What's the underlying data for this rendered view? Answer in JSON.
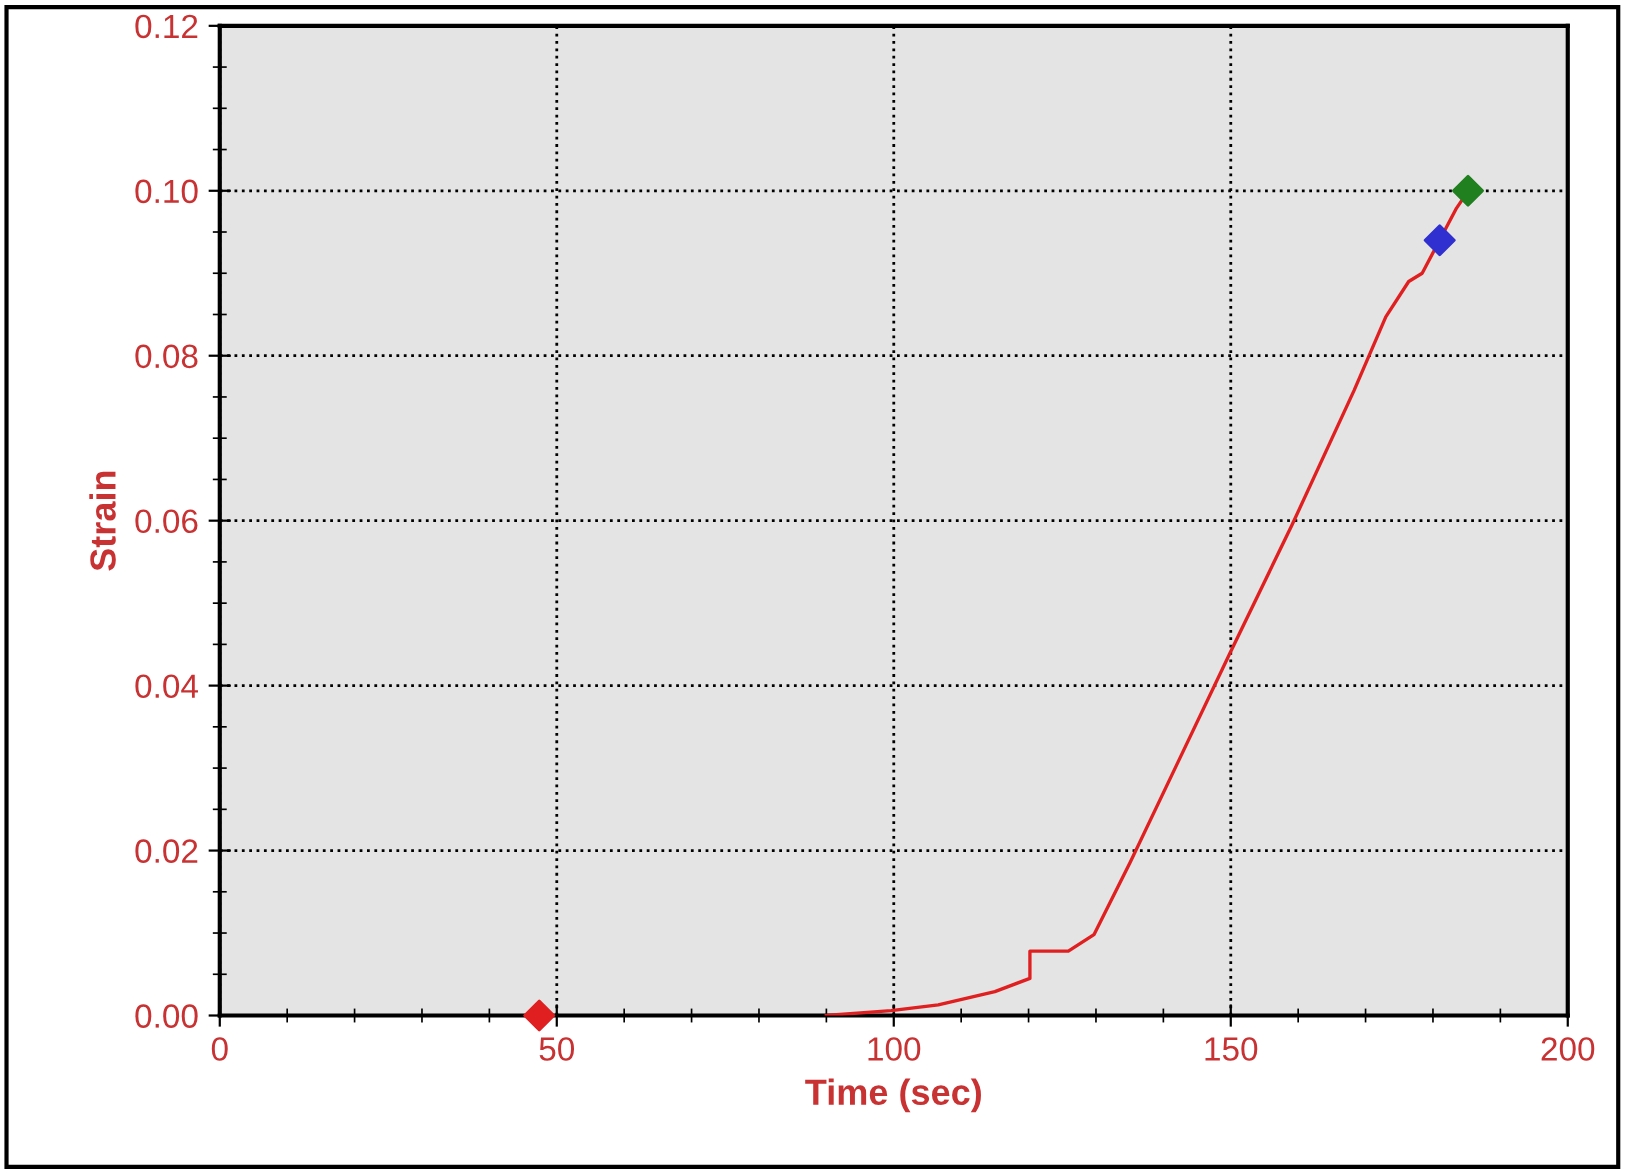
{
  "chart_data": {
    "type": "line",
    "xlabel": "Time (sec)",
    "ylabel": "Strain",
    "xlim": [
      0,
      200
    ],
    "xticks": [
      0,
      50,
      100,
      150,
      200
    ],
    "ylim": [
      0,
      0.12
    ],
    "yticks": [
      {
        "value": 0,
        "label": "0.00"
      },
      {
        "value": 0.02,
        "label": "0.02"
      },
      {
        "value": 0.04,
        "label": "0.04"
      },
      {
        "value": 0.06,
        "label": "0.06"
      },
      {
        "value": 0.08,
        "label": "0.08"
      },
      {
        "value": 0.1,
        "label": "0.10"
      },
      {
        "value": 0.12,
        "label": "0.12"
      }
    ],
    "grid": true,
    "series": [
      {
        "color": "#e02020",
        "marker": "none",
        "line_style": "solid",
        "x": [
          90,
          99.6,
          106.6,
          115,
          120.2,
          120.2,
          125.9,
          129.7,
          135.1,
          142.1,
          149.8,
          159.1,
          168.3,
          173,
          176.4,
          178.4,
          183.5,
          185
        ],
        "values": [
          0,
          0.0006,
          0.0013,
          0.0029,
          0.0045,
          0.0078,
          0.0078,
          0.0098,
          0.0186,
          0.0306,
          0.0438,
          0.0595,
          0.0758,
          0.0847,
          0.089,
          0.09,
          0.0979,
          0.0997
        ]
      },
      {
        "type": "scatter",
        "color": "#e02020",
        "marker": "diamond",
        "x": [
          47.4
        ],
        "values": [
          0
        ]
      },
      {
        "type": "scatter",
        "color": "#3030d0",
        "marker": "diamond",
        "x": [
          181
        ],
        "values": [
          0.094
        ]
      },
      {
        "type": "scatter",
        "color": "#208020",
        "marker": "diamond",
        "x": [
          185.2
        ],
        "values": [
          0.1
        ]
      }
    ]
  }
}
